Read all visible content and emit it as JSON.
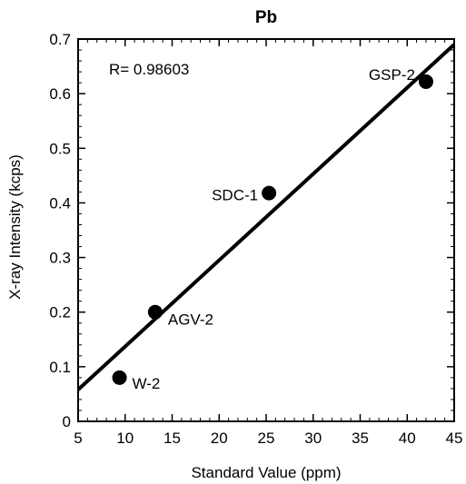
{
  "chart_data": {
    "type": "scatter",
    "title": "Pb",
    "xlabel": "Standard Value (ppm)",
    "ylabel": "X-ray Intensity (kcps)",
    "xlim": [
      5,
      45
    ],
    "ylim": [
      0,
      0.7
    ],
    "xticks": [
      5,
      10,
      15,
      20,
      25,
      30,
      35,
      40,
      45
    ],
    "yticks": [
      0,
      0.1,
      0.2,
      0.3,
      0.4,
      0.5,
      0.6,
      0.7
    ],
    "grid": false,
    "annotation": "R= 0.98603",
    "points": [
      {
        "label": "W-2",
        "x": 9.4,
        "y": 0.08
      },
      {
        "label": "AGV-2",
        "x": 13.2,
        "y": 0.2
      },
      {
        "label": "SDC-1",
        "x": 25.3,
        "y": 0.418
      },
      {
        "label": "GSP-2",
        "x": 42.0,
        "y": 0.622
      }
    ],
    "fit_line": {
      "x": [
        5,
        45
      ],
      "y": [
        0.058,
        0.69
      ]
    },
    "colors": {
      "marker": "#000000",
      "line": "#000000"
    }
  }
}
